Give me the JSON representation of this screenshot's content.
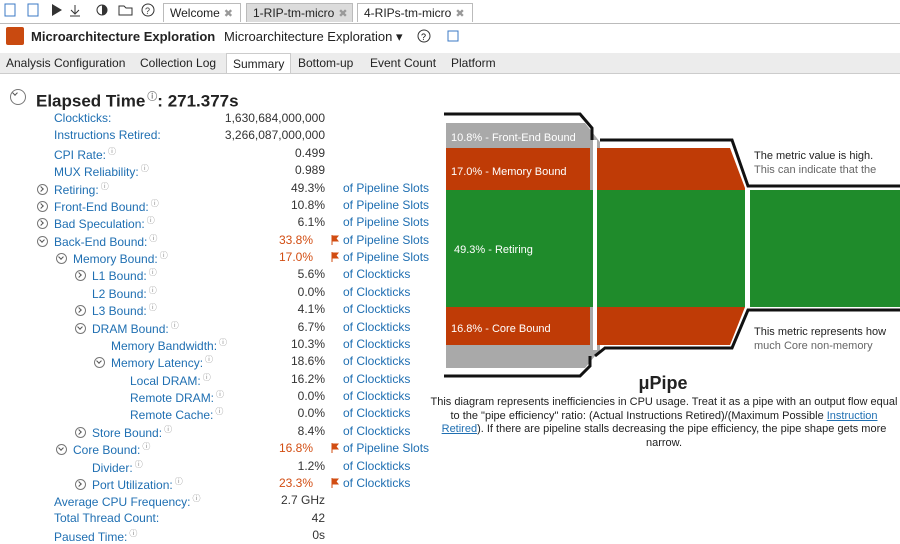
{
  "tabs": [
    "Welcome",
    "1-RIP-tm-micro",
    "4-RIPs-tm-micro"
  ],
  "header": {
    "title": "Microarchitecture Exploration",
    "viewpoint": "Microarchitecture Exploration"
  },
  "nav": [
    "Analysis Configuration",
    "Collection Log",
    "Summary",
    "Bottom-up",
    "Event Count",
    "Platform"
  ],
  "summary": {
    "title": "Elapsed Time",
    "value": "271.377s",
    "rows": [
      {
        "label": "Clockticks:",
        "value": "1,630,684,000,000",
        "level": 0,
        "expander": "none",
        "help": false
      },
      {
        "label": "Instructions Retired:",
        "value": "3,266,087,000,000",
        "level": 0,
        "expander": "none",
        "help": false
      },
      {
        "label": "CPI Rate:",
        "value": "0.499",
        "level": 0,
        "expander": "none",
        "help": true
      },
      {
        "label": "MUX Reliability:",
        "value": "0.989",
        "level": 0,
        "expander": "none",
        "help": true
      },
      {
        "label": "Retiring:",
        "value": "49.3%",
        "unit": "of Pipeline Slots",
        "level": 0,
        "expander": "collapsed",
        "help": true
      },
      {
        "label": "Front-End Bound:",
        "value": "10.8%",
        "unit": "of Pipeline Slots",
        "level": 0,
        "expander": "collapsed",
        "help": true
      },
      {
        "label": "Bad Speculation:",
        "value": "6.1%",
        "unit": "of Pipeline Slots",
        "level": 0,
        "expander": "collapsed",
        "help": true
      },
      {
        "label": "Back-End Bound:",
        "value": "33.8%",
        "unit": "of Pipeline Slots",
        "level": 0,
        "expander": "expanded",
        "help": true,
        "flagged": true
      },
      {
        "label": "Memory Bound:",
        "value": "17.0%",
        "unit": "of Pipeline Slots",
        "level": 1,
        "expander": "expanded",
        "help": true,
        "flagged": true
      },
      {
        "label": "L1 Bound:",
        "value": "5.6%",
        "unit": "of Clockticks",
        "level": 2,
        "expander": "collapsed",
        "help": true
      },
      {
        "label": "L2 Bound:",
        "value": "0.0%",
        "unit": "of Clockticks",
        "level": 2,
        "expander": "none",
        "help": true
      },
      {
        "label": "L3 Bound:",
        "value": "4.1%",
        "unit": "of Clockticks",
        "level": 2,
        "expander": "collapsed",
        "help": true
      },
      {
        "label": "DRAM Bound:",
        "value": "6.7%",
        "unit": "of Clockticks",
        "level": 2,
        "expander": "expanded",
        "help": true
      },
      {
        "label": "Memory Bandwidth:",
        "value": "10.3%",
        "unit": "of Clockticks",
        "level": 3,
        "expander": "none",
        "help": true
      },
      {
        "label": "Memory Latency:",
        "value": "18.6%",
        "unit": "of Clockticks",
        "level": 3,
        "expander": "expanded",
        "help": true
      },
      {
        "label": "Local DRAM:",
        "value": "16.2%",
        "unit": "of Clockticks",
        "level": 4,
        "expander": "none",
        "help": true
      },
      {
        "label": "Remote DRAM:",
        "value": "0.0%",
        "unit": "of Clockticks",
        "level": 4,
        "expander": "none",
        "help": true
      },
      {
        "label": "Remote Cache:",
        "value": "0.0%",
        "unit": "of Clockticks",
        "level": 4,
        "expander": "none",
        "help": true
      },
      {
        "label": "Store Bound:",
        "value": "8.4%",
        "unit": "of Clockticks",
        "level": 2,
        "expander": "collapsed",
        "help": true
      },
      {
        "label": "Core Bound:",
        "value": "16.8%",
        "unit": "of Pipeline Slots",
        "level": 1,
        "expander": "expanded",
        "help": true,
        "flagged": true
      },
      {
        "label": "Divider:",
        "value": "1.2%",
        "unit": "of Clockticks",
        "level": 2,
        "expander": "none",
        "help": true
      },
      {
        "label": "Port Utilization:",
        "value": "23.3%",
        "unit": "of Clockticks",
        "level": 2,
        "expander": "collapsed",
        "help": true,
        "flagged": true
      },
      {
        "label": "Average CPU Frequency:",
        "value": "2.7 GHz",
        "level": 0,
        "expander": "none",
        "help": true
      },
      {
        "label": "Total Thread Count:",
        "value": "42",
        "level": 0,
        "expander": "none",
        "help": false
      },
      {
        "label": "Paused Time:",
        "value": "0s",
        "level": 0,
        "expander": "none",
        "help": true
      }
    ]
  },
  "pipe": {
    "segments": [
      "10.8% - Front-End Bound",
      "17.0% - Memory Bound",
      "49.3% - Retiring",
      "16.8% - Core Bound"
    ],
    "notes": [
      [
        "The metric value is high.",
        "This can indicate that the"
      ],
      [
        "This metric represents how",
        "much Core non-memory"
      ]
    ],
    "title": "μPipe",
    "description": {
      "before": "This diagram represents inefficiencies in CPU usage. Treat it as a pipe with an output flow equal to the \"pipe efficiency\" ratio: (Actual Instructions Retired)/(Maximum Possible ",
      "link": "Instruction Retired",
      "after": "). If there are pipeline stalls decreasing the pipe efficiency, the pipe shape gets more narrow."
    }
  }
}
